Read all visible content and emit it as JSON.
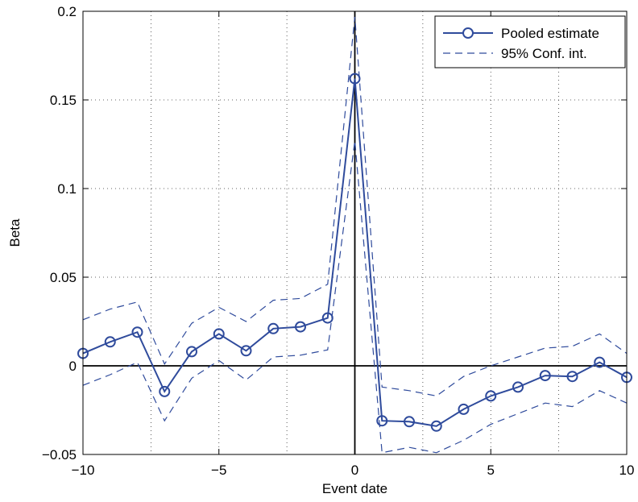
{
  "chart_data": {
    "type": "line",
    "xlabel": "Event date",
    "ylabel": "Beta",
    "xlim": [
      -10,
      10
    ],
    "ylim": [
      -0.05,
      0.2
    ],
    "xticks": [
      -10,
      -5,
      0,
      5,
      10
    ],
    "xtick_labels": [
      "−10",
      "−5",
      "0",
      "5",
      "10"
    ],
    "yticks": [
      -0.05,
      0,
      0.05,
      0.1,
      0.15,
      0.2
    ],
    "ytick_labels": [
      "−0.05",
      "0",
      "0.05",
      "0.1",
      "0.15",
      "0.2"
    ],
    "grid": true,
    "legend_position": "top-right",
    "x": [
      -10,
      -9,
      -8,
      -7,
      -6,
      -5,
      -4,
      -3,
      -2,
      -1,
      0,
      1,
      2,
      3,
      4,
      5,
      6,
      7,
      8,
      9,
      10
    ],
    "series": [
      {
        "name": "Pooled estimate",
        "style": "solid-circle-markers",
        "color": "#2f4b9c",
        "values": [
          0.007,
          0.0135,
          0.019,
          -0.0145,
          0.008,
          0.018,
          0.0085,
          0.021,
          0.022,
          0.027,
          0.162,
          -0.031,
          -0.0315,
          -0.034,
          -0.0245,
          -0.017,
          -0.012,
          -0.0055,
          -0.006,
          0.002,
          -0.0065
        ]
      },
      {
        "name": "95% Conf. int.",
        "style": "dashed",
        "color": "#2f4b9c",
        "upper": [
          0.026,
          0.032,
          0.036,
          0.001,
          0.024,
          0.033,
          0.025,
          0.037,
          0.038,
          0.046,
          0.197,
          -0.012,
          -0.014,
          -0.017,
          -0.006,
          0.0,
          0.005,
          0.01,
          0.011,
          0.018,
          0.007
        ],
        "lower": [
          -0.011,
          -0.005,
          0.002,
          -0.031,
          -0.007,
          0.003,
          -0.008,
          0.005,
          0.006,
          0.009,
          0.127,
          -0.049,
          -0.046,
          -0.049,
          -0.042,
          -0.033,
          -0.027,
          -0.021,
          -0.023,
          -0.014,
          -0.021
        ]
      }
    ],
    "reference_lines": {
      "x": 0,
      "y": 0
    }
  }
}
